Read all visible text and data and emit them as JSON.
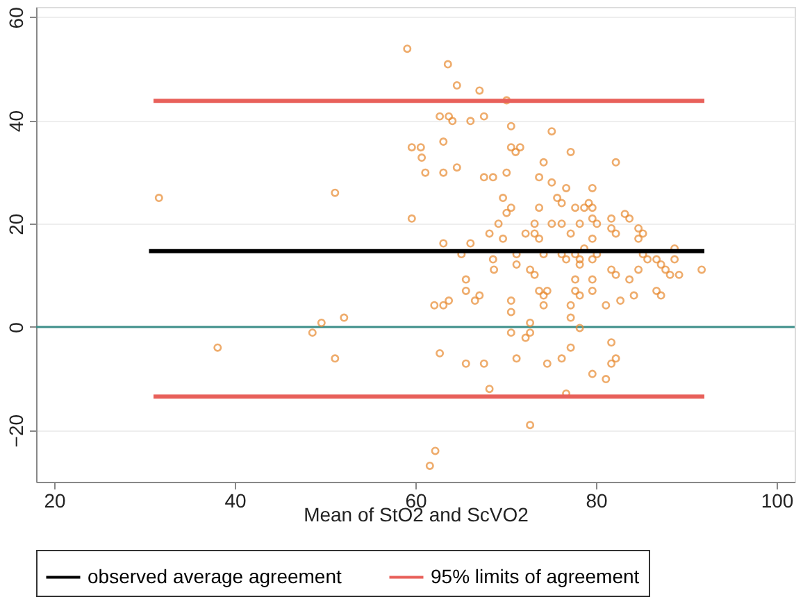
{
  "chart_data": {
    "type": "scatter",
    "xlabel": "Mean of StO2 and ScVO2",
    "xlim": [
      18,
      102
    ],
    "ylim": [
      -30,
      62
    ],
    "xticks": [
      20,
      40,
      60,
      80,
      100
    ],
    "yticks": [
      -20,
      0,
      20,
      40,
      60
    ],
    "grid": "y",
    "legend": "bottom",
    "marker": "circle",
    "series": [
      {
        "color": "#e8892f",
        "x": [
          59.1,
          63.6,
          64.6,
          67.1,
          70.1,
          62.7,
          63.7,
          64.1,
          66.1,
          67.6,
          70.6,
          75.1,
          63.1,
          59.6,
          60.6,
          60.7,
          70.6,
          71.6,
          71.1,
          77.2,
          74.2,
          82.2,
          64.6,
          61.1,
          63.1,
          70.1,
          67.6,
          68.6,
          73.7,
          75.1,
          76.7,
          79.6,
          51.1,
          31.6,
          69.7,
          75.7,
          76.2,
          70.6,
          73.7,
          77.7,
          79.2,
          79.6,
          78.7,
          70.1,
          79.6,
          80.1,
          81.7,
          83.2,
          83.7,
          69.2,
          73.2,
          75.1,
          76.2,
          78.2,
          59.6,
          68.2,
          72.2,
          73.2,
          77.2,
          81.7,
          82.2,
          84.7,
          85.2,
          69.7,
          73.7,
          79.6,
          84.7,
          63.1,
          66.1,
          78.7,
          88.7,
          65.1,
          71.2,
          74.2,
          76.2,
          77.7,
          80.1,
          85.2,
          76.7,
          78.2,
          79.6,
          85.7,
          86.7,
          88.7,
          68.6,
          78.2,
          71.2,
          87.2,
          68.7,
          72.7,
          81.7,
          84.7,
          91.7,
          87.7,
          73.2,
          82.2,
          88.2,
          89.2,
          65.6,
          77.7,
          79.6,
          83.7,
          65.6,
          73.7,
          74.6,
          77.7,
          79.6,
          86.7,
          67.1,
          74.2,
          78.2,
          84.2,
          87.2,
          63.7,
          66.6,
          70.6,
          82.7,
          62.1,
          63.1,
          74.2,
          77.2,
          81.1,
          70.6,
          52.1,
          77.2,
          49.6,
          72.7,
          78.2,
          48.6,
          70.6,
          72.7,
          72.2,
          81.7,
          38.1,
          77.2,
          62.7,
          51.1,
          71.2,
          76.2,
          82.2,
          65.6,
          67.6,
          74.6,
          81.7,
          79.6,
          81.1,
          68.2,
          76.7,
          72.7,
          62.2,
          61.6
        ],
        "values": [
          53.9,
          50.9,
          46.8,
          45.8,
          43.9,
          40.8,
          40.8,
          39.9,
          39.9,
          40.8,
          38.9,
          37.9,
          35.9,
          34.8,
          34.8,
          32.8,
          34.8,
          34.8,
          33.9,
          33.9,
          31.9,
          31.9,
          30.9,
          29.9,
          29.9,
          29.9,
          29.0,
          29.0,
          29.0,
          28.0,
          26.9,
          26.9,
          26.0,
          25.0,
          25.0,
          25.0,
          24.0,
          23.1,
          23.1,
          23.1,
          24.0,
          23.1,
          23.1,
          22.1,
          21.0,
          20.0,
          21.0,
          21.9,
          21.0,
          20.0,
          20.0,
          20.0,
          20.0,
          20.0,
          21.0,
          18.1,
          18.1,
          18.1,
          18.1,
          19.1,
          18.1,
          19.1,
          18.1,
          17.1,
          17.1,
          17.1,
          17.1,
          16.2,
          16.2,
          15.2,
          15.2,
          14.1,
          14.1,
          14.1,
          14.1,
          14.1,
          14.1,
          14.1,
          13.1,
          13.1,
          13.1,
          13.1,
          13.1,
          13.1,
          13.1,
          12.1,
          12.1,
          12.1,
          11.1,
          11.1,
          11.1,
          11.1,
          11.1,
          11.1,
          10.1,
          10.1,
          10.1,
          10.1,
          9.2,
          9.2,
          9.2,
          9.2,
          7.0,
          7.0,
          7.0,
          7.0,
          7.0,
          7.0,
          6.1,
          6.1,
          6.1,
          6.1,
          6.1,
          5.1,
          5.1,
          5.1,
          5.1,
          4.2,
          4.2,
          4.2,
          4.2,
          4.2,
          2.9,
          1.8,
          1.8,
          0.8,
          0.8,
          -0.2,
          -1.1,
          -1.1,
          -1.1,
          -2.1,
          -3.0,
          -4.0,
          -4.0,
          -5.1,
          -6.1,
          -6.1,
          -6.1,
          -6.1,
          -7.1,
          -7.1,
          -7.1,
          -7.1,
          -9.1,
          -10.1,
          -12.0,
          -12.9,
          -19.0,
          -24.0,
          -26.9
        ]
      },
      {
        "type": "line",
        "name": "observed average agreement",
        "color": "#000000",
        "marker": "none",
        "x": [
          30.5,
          92
        ],
        "values": [
          14.7,
          14.7
        ]
      },
      {
        "type": "line",
        "name": "95% limits of agreement",
        "color": "#e8605a",
        "marker": "none",
        "x": [
          31,
          92
        ],
        "values": [
          43.8,
          43.8
        ]
      },
      {
        "type": "line",
        "color": "#e8605a",
        "marker": "none",
        "x": [
          31,
          92
        ],
        "values": [
          -13.5,
          -13.5
        ]
      }
    ],
    "ref_lines": [
      {
        "axis": "y",
        "value": 0,
        "color": "#3d8f8a"
      }
    ]
  }
}
